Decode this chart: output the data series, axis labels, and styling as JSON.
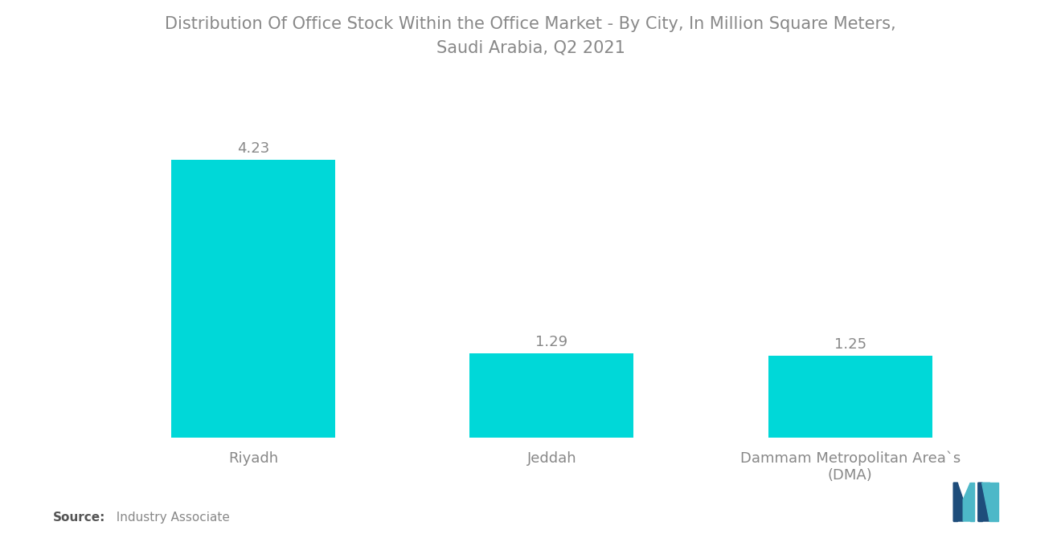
{
  "title_line1": "Distribution Of Office Stock Within the Office Market - By City, In Million Square Meters,",
  "title_line2": "Saudi Arabia, Q2 2021",
  "categories": [
    "Riyadh",
    "Jeddah",
    "Dammam Metropolitan Area`s\n(DMA)"
  ],
  "values": [
    4.23,
    1.29,
    1.25
  ],
  "bar_color": "#00D8D8",
  "value_labels": [
    "4.23",
    "1.29",
    "1.25"
  ],
  "title_fontsize": 15,
  "label_fontsize": 13,
  "value_fontsize": 13,
  "source_bold": "Source:",
  "source_normal": "  Industry Associate",
  "background_color": "#ffffff",
  "ylim": [
    0,
    5.2
  ],
  "bar_width": 0.55,
  "text_color": "#888888",
  "logo_m_dark": "#1e4d7b",
  "logo_m_light": "#4db8c8",
  "logo_n_dark": "#1e4d7b",
  "logo_n_light": "#4db8c8"
}
